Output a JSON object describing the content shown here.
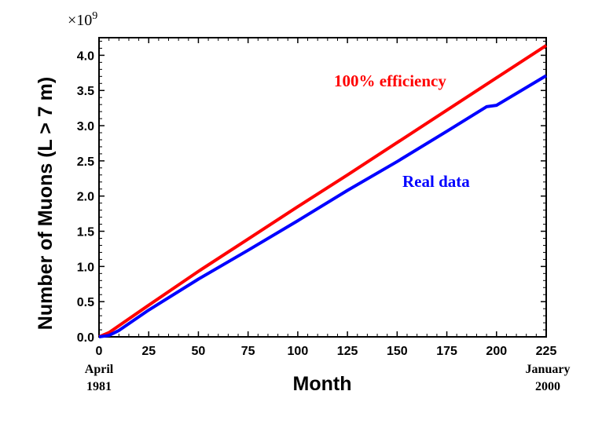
{
  "chart_data": {
    "type": "line",
    "title": "",
    "xlabel": "Month",
    "ylabel": "Number of Muons (L > 7 m)",
    "y_multiplier": "×10",
    "y_multiplier_exp": "9",
    "xlim": [
      0,
      225
    ],
    "ylim": [
      0,
      4.25
    ],
    "x_ticks": [
      0,
      25,
      50,
      75,
      100,
      125,
      150,
      175,
      200,
      225
    ],
    "y_ticks": [
      0.0,
      0.5,
      1.0,
      1.5,
      2.0,
      2.5,
      3.0,
      3.5,
      4.0
    ],
    "y_tick_labels": [
      "0.0",
      "0.5",
      "1.0",
      "1.5",
      "2.0",
      "2.5",
      "3.0",
      "3.5",
      "4.0"
    ],
    "x_start_note": [
      "April",
      "1981"
    ],
    "x_end_note": [
      "January",
      "2000"
    ],
    "series": [
      {
        "name": "100% efficiency",
        "color": "#ff0000",
        "x": [
          0,
          5,
          25,
          50,
          75,
          100,
          125,
          150,
          175,
          200,
          225
        ],
        "y": [
          0.0,
          0.06,
          0.45,
          0.93,
          1.39,
          1.85,
          2.3,
          2.76,
          3.22,
          3.68,
          4.14
        ]
      },
      {
        "name": "Real data",
        "color": "#0000ff",
        "x": [
          0,
          5,
          10,
          25,
          50,
          75,
          100,
          125,
          150,
          175,
          195,
          200,
          225
        ],
        "y": [
          0.0,
          0.02,
          0.09,
          0.38,
          0.82,
          1.23,
          1.65,
          2.08,
          2.49,
          2.92,
          3.27,
          3.29,
          3.71
        ]
      }
    ],
    "annotations": [
      {
        "text": "100% efficiency",
        "color": "#ff0000"
      },
      {
        "text": "Real data",
        "color": "#0000ff"
      }
    ]
  }
}
